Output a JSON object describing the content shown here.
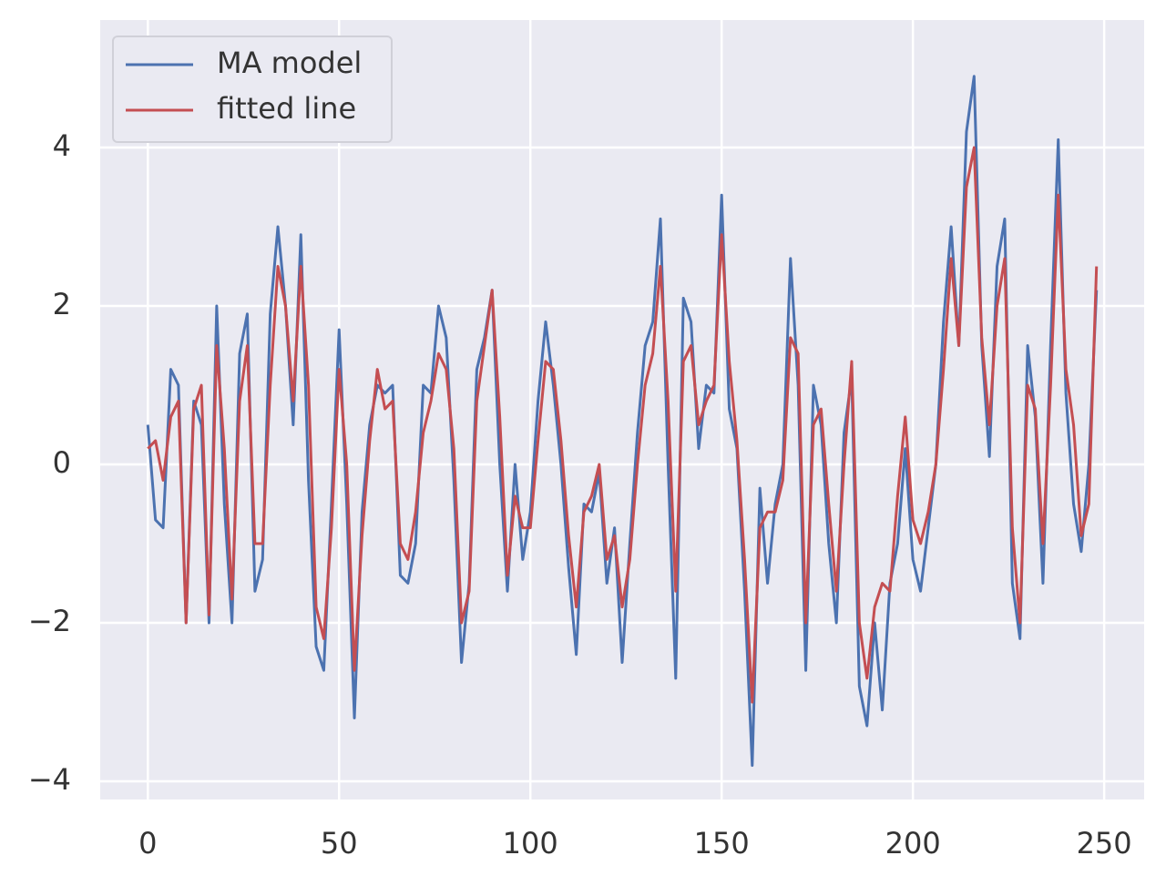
{
  "chart_data": {
    "type": "line",
    "x": [
      0,
      2,
      4,
      6,
      8,
      10,
      12,
      14,
      16,
      18,
      20,
      22,
      24,
      26,
      28,
      30,
      32,
      34,
      36,
      38,
      40,
      42,
      44,
      46,
      48,
      50,
      52,
      54,
      56,
      58,
      60,
      62,
      64,
      66,
      68,
      70,
      72,
      74,
      76,
      78,
      80,
      82,
      84,
      86,
      88,
      90,
      92,
      94,
      96,
      98,
      100,
      102,
      104,
      106,
      108,
      110,
      112,
      114,
      116,
      118,
      120,
      122,
      124,
      126,
      128,
      130,
      132,
      134,
      136,
      138,
      140,
      142,
      144,
      146,
      148,
      150,
      152,
      154,
      156,
      158,
      160,
      162,
      164,
      166,
      168,
      170,
      172,
      174,
      176,
      178,
      180,
      182,
      184,
      186,
      188,
      190,
      192,
      194,
      196,
      198,
      200,
      202,
      204,
      206,
      208,
      210,
      212,
      214,
      216,
      218,
      220,
      222,
      224,
      226,
      228,
      230,
      232,
      234,
      236,
      238,
      240,
      242,
      244,
      246,
      248
    ],
    "series": [
      {
        "name": "MA model",
        "color": "#4c72b0",
        "values": [
          0.5,
          -0.7,
          -0.8,
          1.2,
          1.0,
          -2.0,
          0.8,
          0.5,
          -2.0,
          2.0,
          -0.5,
          -2.0,
          1.4,
          1.9,
          -1.6,
          -1.2,
          1.9,
          3.0,
          2.0,
          0.5,
          2.9,
          -0.2,
          -2.3,
          -2.6,
          -0.5,
          1.7,
          -0.5,
          -3.2,
          -0.6,
          0.5,
          1.0,
          0.9,
          1.0,
          -1.4,
          -1.5,
          -1.0,
          1.0,
          0.9,
          2.0,
          1.6,
          -0.2,
          -2.5,
          -1.5,
          1.2,
          1.6,
          2.2,
          0.0,
          -1.6,
          0.0,
          -1.2,
          -0.6,
          0.8,
          1.8,
          1.0,
          0.0,
          -1.3,
          -2.4,
          -0.5,
          -0.6,
          -0.1,
          -1.5,
          -0.8,
          -2.5,
          -1.0,
          0.4,
          1.5,
          1.8,
          3.1,
          0.0,
          -2.7,
          2.1,
          1.8,
          0.2,
          1.0,
          0.9,
          3.4,
          0.7,
          0.2,
          -1.6,
          -3.8,
          -0.3,
          -1.5,
          -0.5,
          0.0,
          2.6,
          1.0,
          -2.6,
          1.0,
          0.5,
          -1.0,
          -2.0,
          0.4,
          1.1,
          -2.8,
          -3.3,
          -2.0,
          -3.1,
          -1.5,
          -1.0,
          0.2,
          -1.2,
          -1.6,
          -0.8,
          0.0,
          1.8,
          3.0,
          1.5,
          4.2,
          4.9,
          1.5,
          0.1,
          2.5,
          3.1,
          -1.5,
          -2.2,
          1.5,
          0.6,
          -1.5,
          1.5,
          4.1,
          0.9,
          -0.5,
          -1.1,
          0.0,
          2.2
        ]
      },
      {
        "name": "fitted line",
        "color": "#c44e52",
        "values": [
          0.2,
          0.3,
          -0.2,
          0.6,
          0.8,
          -2.0,
          0.7,
          1.0,
          -1.9,
          1.5,
          0.2,
          -1.7,
          0.8,
          1.5,
          -1.0,
          -1.0,
          1.0,
          2.5,
          2.0,
          0.8,
          2.5,
          1.0,
          -1.8,
          -2.2,
          -0.8,
          1.2,
          0.0,
          -2.6,
          -0.9,
          0.3,
          1.2,
          0.7,
          0.8,
          -1.0,
          -1.2,
          -0.6,
          0.4,
          0.8,
          1.4,
          1.2,
          0.2,
          -2.0,
          -1.6,
          0.8,
          1.5,
          2.2,
          0.6,
          -1.4,
          -0.4,
          -0.8,
          -0.8,
          0.3,
          1.3,
          1.2,
          0.3,
          -0.9,
          -1.8,
          -0.6,
          -0.4,
          0.0,
          -1.2,
          -0.9,
          -1.8,
          -1.2,
          0.0,
          1.0,
          1.4,
          2.5,
          0.8,
          -1.6,
          1.3,
          1.5,
          0.5,
          0.8,
          1.0,
          2.9,
          1.3,
          0.3,
          -1.2,
          -3.0,
          -0.8,
          -0.6,
          -0.6,
          -0.2,
          1.6,
          1.4,
          -2.0,
          0.5,
          0.7,
          -0.5,
          -1.6,
          0.0,
          1.3,
          -2.0,
          -2.7,
          -1.8,
          -1.5,
          -1.6,
          -0.4,
          0.6,
          -0.7,
          -1.0,
          -0.6,
          0.0,
          1.2,
          2.6,
          1.5,
          3.5,
          4.0,
          1.6,
          0.5,
          2.0,
          2.6,
          -0.8,
          -2.0,
          1.0,
          0.7,
          -1.0,
          1.0,
          3.4,
          1.2,
          0.5,
          -0.9,
          -0.5,
          2.5
        ]
      }
    ],
    "xlim": [
      -12.45,
      260.45
    ],
    "ylim": [
      -4.23,
      5.61
    ],
    "xticks": [
      0,
      50,
      100,
      150,
      200,
      250
    ],
    "yticks": [
      {
        "value": -4,
        "label": "−4"
      },
      {
        "value": -2,
        "label": "−2"
      },
      0,
      2,
      4
    ],
    "grid": true,
    "legend": "upper left"
  }
}
